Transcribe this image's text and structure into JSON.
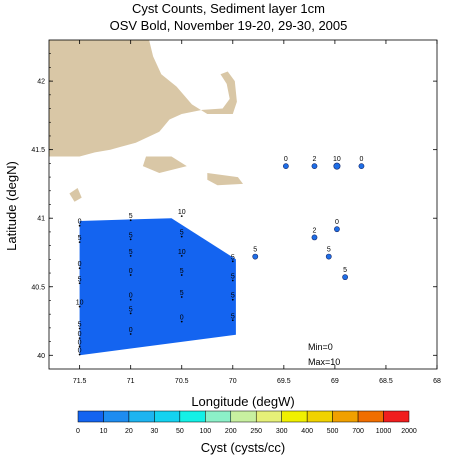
{
  "title_line1": "Cyst Counts, Sediment layer 1cm",
  "title_line2": "OSV Bold, November 19-20, 29-30, 2005",
  "chart_data": {
    "type": "scatter",
    "xlabel": "Longitude (degW)",
    "ylabel": "Latitude (degN)",
    "xlim": [
      71.8,
      68
    ],
    "ylim": [
      39.9,
      42.3
    ],
    "x_ticks": [
      "71.5",
      "71",
      "70.5",
      "70",
      "69.5",
      "69",
      "68.5",
      "68"
    ],
    "y_ticks": [
      "40",
      "40.5",
      "41",
      "41.5",
      "42"
    ],
    "annotations": [
      "Min=0",
      "Max=10"
    ],
    "colorbar": {
      "title": "Cyst (cysts/cc)",
      "tick_labels": [
        "0",
        "10",
        "20",
        "30",
        "50",
        "100",
        "200",
        "250",
        "300",
        "400",
        "500",
        "700",
        "1000",
        "2000"
      ],
      "colors": [
        "#1464f0",
        "#1e8cf0",
        "#1eb4f0",
        "#14d2f0",
        "#14f0e6",
        "#8cf0c8",
        "#c8f0a0",
        "#e6f078",
        "#f0f000",
        "#f0d200",
        "#f0a000",
        "#f06e00",
        "#f01e1e"
      ]
    },
    "colors": {
      "land": "#d9c7a6",
      "contour_fill": "#1464f0",
      "point_fill": "#1e6ee6"
    },
    "stations": [
      {
        "lon": 69.48,
        "lat": 41.38,
        "value": 0
      },
      {
        "lon": 69.2,
        "lat": 41.38,
        "value": 2
      },
      {
        "lon": 68.98,
        "lat": 41.38,
        "value": 10
      },
      {
        "lon": 68.74,
        "lat": 41.38,
        "value": 0
      },
      {
        "lon": 69.78,
        "lat": 40.72,
        "value": 5
      },
      {
        "lon": 69.2,
        "lat": 40.86,
        "value": 2
      },
      {
        "lon": 68.98,
        "lat": 40.92,
        "value": 0
      },
      {
        "lon": 69.06,
        "lat": 40.72,
        "value": 5
      },
      {
        "lon": 68.9,
        "lat": 40.57,
        "value": 5
      }
    ],
    "grid_samples": [
      {
        "lon": 71.5,
        "lat": 40.96,
        "value": 0
      },
      {
        "lon": 71.5,
        "lat": 40.84,
        "value": 5
      },
      {
        "lon": 71.5,
        "lat": 40.65,
        "value": 0
      },
      {
        "lon": 71.5,
        "lat": 40.54,
        "value": 5
      },
      {
        "lon": 71.5,
        "lat": 40.37,
        "value": 10
      },
      {
        "lon": 71.5,
        "lat": 40.21,
        "value": 5
      },
      {
        "lon": 71.5,
        "lat": 40.14,
        "value": 0
      },
      {
        "lon": 71.5,
        "lat": 40.08,
        "value": 0
      },
      {
        "lon": 71.5,
        "lat": 40.02,
        "value": 0
      },
      {
        "lon": 71.0,
        "lat": 41.0,
        "value": 5
      },
      {
        "lon": 71.0,
        "lat": 40.86,
        "value": 5
      },
      {
        "lon": 71.0,
        "lat": 40.74,
        "value": 5
      },
      {
        "lon": 71.0,
        "lat": 40.6,
        "value": 0
      },
      {
        "lon": 71.0,
        "lat": 40.42,
        "value": 0
      },
      {
        "lon": 71.0,
        "lat": 40.32,
        "value": 5
      },
      {
        "lon": 71.0,
        "lat": 40.17,
        "value": 0
      },
      {
        "lon": 70.5,
        "lat": 41.03,
        "value": 10
      },
      {
        "lon": 70.5,
        "lat": 40.88,
        "value": 5
      },
      {
        "lon": 70.5,
        "lat": 40.74,
        "value": 10
      },
      {
        "lon": 70.5,
        "lat": 40.6,
        "value": 5
      },
      {
        "lon": 70.5,
        "lat": 40.44,
        "value": 5
      },
      {
        "lon": 70.5,
        "lat": 40.26,
        "value": 0
      },
      {
        "lon": 70.0,
        "lat": 40.7,
        "value": 5
      },
      {
        "lon": 70.0,
        "lat": 40.56,
        "value": 5
      },
      {
        "lon": 70.0,
        "lat": 40.42,
        "value": 5
      },
      {
        "lon": 70.0,
        "lat": 40.27,
        "value": 5
      }
    ],
    "contour_region": [
      [
        71.5,
        40.98
      ],
      [
        70.6,
        41.0
      ],
      [
        69.97,
        40.7
      ],
      [
        69.97,
        40.15
      ],
      [
        71.5,
        40.0
      ]
    ],
    "coast_shapes": [
      [
        [
          71.8,
          42.3
        ],
        [
          70.82,
          42.3
        ],
        [
          70.78,
          42.18
        ],
        [
          70.7,
          42.05
        ],
        [
          70.55,
          41.96
        ],
        [
          70.4,
          41.83
        ],
        [
          70.25,
          41.76
        ],
        [
          70.0,
          41.76
        ],
        [
          69.96,
          41.85
        ],
        [
          69.98,
          42.0
        ],
        [
          70.05,
          42.07
        ],
        [
          70.12,
          42.05
        ],
        [
          70.06,
          41.98
        ],
        [
          70.03,
          41.87
        ],
        [
          70.1,
          41.8
        ],
        [
          70.3,
          41.79
        ],
        [
          70.5,
          41.76
        ],
        [
          70.62,
          41.72
        ],
        [
          70.72,
          41.63
        ],
        [
          70.95,
          41.55
        ],
        [
          71.1,
          41.52
        ],
        [
          71.2,
          41.5
        ],
        [
          71.35,
          41.48
        ],
        [
          71.5,
          41.45
        ],
        [
          71.8,
          41.45
        ]
      ],
      [
        [
          70.85,
          41.45
        ],
        [
          70.6,
          41.45
        ],
        [
          70.45,
          41.38
        ],
        [
          70.72,
          41.33
        ],
        [
          70.88,
          41.38
        ]
      ],
      [
        [
          70.25,
          41.33
        ],
        [
          69.95,
          41.3
        ],
        [
          69.9,
          41.25
        ],
        [
          70.15,
          41.24
        ],
        [
          70.25,
          41.28
        ]
      ],
      [
        [
          71.6,
          41.18
        ],
        [
          71.52,
          41.22
        ],
        [
          71.48,
          41.15
        ],
        [
          71.55,
          41.12
        ]
      ]
    ]
  }
}
